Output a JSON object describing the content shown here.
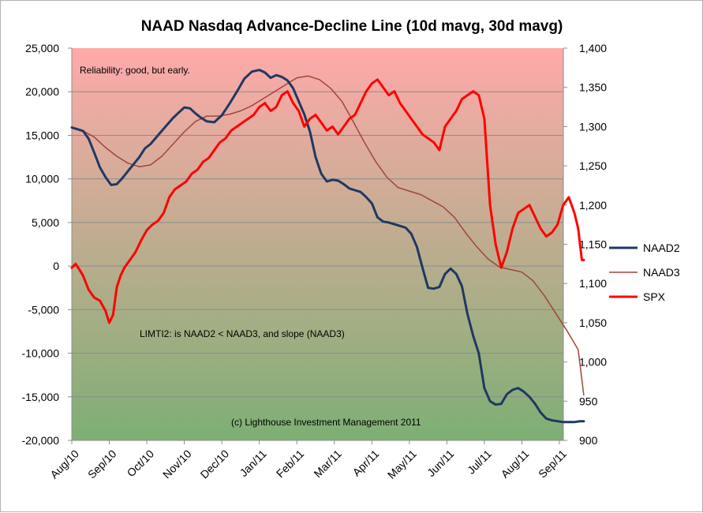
{
  "chart_data": {
    "type": "line",
    "title": "NAAD Nasdaq Advance-Decline Line (10d mavg, 30d mavg)",
    "x_categories": [
      "Aug/10",
      "Sep/10",
      "Oct/10",
      "Nov/10",
      "Dec/10",
      "Jan/11",
      "Feb/11",
      "Mar/11",
      "Apr/11",
      "May/11",
      "Jun/11",
      "Jul/11",
      "Aug/11",
      "Sep/11"
    ],
    "y_left": {
      "ylim": [
        -20000,
        25000
      ],
      "step": 5000,
      "tick_labels": [
        "-20,000",
        "-15,000",
        "-10,000",
        "-5,000",
        "0",
        "5,000",
        "10,000",
        "15,000",
        "20,000",
        "25,000"
      ]
    },
    "y_right": {
      "ylim": [
        900,
        1400
      ],
      "step": 50,
      "tick_labels": [
        "900",
        "950",
        "1,000",
        "1,050",
        "1,100",
        "1,150",
        "1,200",
        "1,250",
        "1,300",
        "1,350",
        "1,400"
      ]
    },
    "grid": true,
    "legend_position": "right",
    "background_gradient": {
      "top": "#ffaaaa",
      "bottom": "#7daf74"
    },
    "annotations": [
      "Reliability: good, but early.",
      "LIMTI2: is NAAD2 < NAAD3, and slope (NAAD3)",
      "(c) Lighthouse Investment Management 2011"
    ],
    "series": [
      {
        "name": "NAAD2",
        "axis": "left",
        "color": "#1f3864",
        "width": 3,
        "x": [
          0,
          0.15,
          0.3,
          0.45,
          0.6,
          0.75,
          0.9,
          1.05,
          1.2,
          1.35,
          1.5,
          1.65,
          1.8,
          1.95,
          2.1,
          2.3,
          2.5,
          2.7,
          2.85,
          3.0,
          3.15,
          3.3,
          3.45,
          3.6,
          3.8,
          4.0,
          4.2,
          4.4,
          4.6,
          4.8,
          5.0,
          5.15,
          5.3,
          5.45,
          5.6,
          5.75,
          5.9,
          6.05,
          6.2,
          6.35,
          6.5,
          6.65,
          6.8,
          6.95,
          7.1,
          7.25,
          7.4,
          7.55,
          7.7,
          7.85,
          8.0,
          8.15,
          8.3,
          8.45,
          8.6,
          8.75,
          8.9,
          9.05,
          9.2,
          9.35,
          9.5,
          9.65,
          9.8,
          9.95,
          10.1,
          10.25,
          10.4,
          10.55,
          10.7,
          10.85,
          11.0,
          11.15,
          11.3,
          11.45,
          11.6,
          11.75,
          11.9,
          12.05,
          12.2,
          12.35,
          12.5,
          12.65,
          12.8,
          12.95,
          13.1,
          13.25,
          13.4,
          13.55,
          13.65
        ],
        "values": [
          15900,
          15700,
          15500,
          14600,
          13000,
          11300,
          10200,
          9300,
          9400,
          10100,
          10900,
          11700,
          12500,
          13500,
          14000,
          15000,
          16000,
          17000,
          17600,
          18200,
          18100,
          17500,
          17000,
          16600,
          16500,
          17300,
          18600,
          20000,
          21500,
          22300,
          22500,
          22200,
          21600,
          21900,
          21700,
          21300,
          20400,
          18900,
          17400,
          15400,
          12500,
          10600,
          9700,
          9900,
          9800,
          9400,
          8900,
          8700,
          8500,
          7900,
          7200,
          5600,
          5100,
          5000,
          4800,
          4600,
          4400,
          3700,
          2200,
          -200,
          -2500,
          -2600,
          -2400,
          -900,
          -300,
          -900,
          -2300,
          -5500,
          -8000,
          -10000,
          -14000,
          -15500,
          -15900,
          -15800,
          -14700,
          -14200,
          -14000,
          -14400,
          -15000,
          -15800,
          -16800,
          -17500,
          -17700,
          -17800,
          -17900,
          -17900,
          -17900,
          -17800,
          -17800
        ]
      },
      {
        "name": "NAAD3",
        "axis": "left",
        "color": "#a0453c",
        "width": 1.5,
        "x": [
          0,
          0.3,
          0.6,
          0.9,
          1.2,
          1.5,
          1.8,
          2.1,
          2.4,
          2.7,
          3.0,
          3.3,
          3.6,
          3.9,
          4.2,
          4.5,
          4.8,
          5.1,
          5.4,
          5.7,
          6.0,
          6.3,
          6.6,
          6.9,
          7.2,
          7.5,
          7.8,
          8.1,
          8.4,
          8.7,
          9.0,
          9.3,
          9.6,
          9.9,
          10.2,
          10.5,
          10.8,
          11.1,
          11.4,
          11.7,
          12.0,
          12.3,
          12.6,
          12.9,
          13.2,
          13.5,
          13.65
        ],
        "values": [
          15800,
          15500,
          14800,
          13600,
          12600,
          11800,
          11400,
          11600,
          12600,
          14000,
          15400,
          16600,
          17200,
          17200,
          17400,
          17800,
          18400,
          19200,
          20000,
          20800,
          21600,
          21800,
          21400,
          20400,
          18900,
          16600,
          14200,
          12000,
          10200,
          9000,
          8600,
          8200,
          7500,
          6800,
          5600,
          3800,
          2200,
          800,
          -100,
          -400,
          -700,
          -1700,
          -3400,
          -5400,
          -7400,
          -9600,
          -14800
        ]
      },
      {
        "name": "SPX",
        "axis": "right",
        "color": "#ff0000",
        "width": 3,
        "x": [
          0,
          0.1,
          0.2,
          0.3,
          0.45,
          0.6,
          0.75,
          0.9,
          1.0,
          1.1,
          1.2,
          1.3,
          1.4,
          1.55,
          1.7,
          1.85,
          2.0,
          2.15,
          2.3,
          2.45,
          2.6,
          2.75,
          2.9,
          3.05,
          3.2,
          3.35,
          3.5,
          3.65,
          3.8,
          3.95,
          4.1,
          4.25,
          4.4,
          4.55,
          4.7,
          4.85,
          5.0,
          5.15,
          5.3,
          5.45,
          5.6,
          5.75,
          5.9,
          6.05,
          6.2,
          6.35,
          6.5,
          6.65,
          6.8,
          6.95,
          7.1,
          7.25,
          7.4,
          7.55,
          7.7,
          7.85,
          8.0,
          8.15,
          8.3,
          8.45,
          8.6,
          8.75,
          8.9,
          9.05,
          9.2,
          9.35,
          9.5,
          9.65,
          9.8,
          9.95,
          10.1,
          10.25,
          10.4,
          10.55,
          10.7,
          10.85,
          11.0,
          11.15,
          11.3,
          11.45,
          11.6,
          11.75,
          11.9,
          12.05,
          12.2,
          12.35,
          12.5,
          12.65,
          12.8,
          12.95,
          13.1,
          13.25,
          13.4,
          13.5,
          13.55,
          13.6,
          13.65
        ],
        "values": [
          1120,
          1125,
          1118,
          1110,
          1092,
          1082,
          1078,
          1065,
          1050,
          1060,
          1095,
          1110,
          1120,
          1130,
          1140,
          1155,
          1168,
          1175,
          1180,
          1190,
          1210,
          1220,
          1225,
          1230,
          1240,
          1245,
          1255,
          1260,
          1270,
          1280,
          1285,
          1295,
          1300,
          1305,
          1310,
          1315,
          1325,
          1330,
          1320,
          1325,
          1340,
          1345,
          1330,
          1320,
          1300,
          1310,
          1315,
          1305,
          1295,
          1300,
          1290,
          1300,
          1310,
          1315,
          1330,
          1345,
          1355,
          1360,
          1350,
          1340,
          1345,
          1330,
          1320,
          1310,
          1300,
          1290,
          1285,
          1280,
          1270,
          1300,
          1310,
          1320,
          1335,
          1340,
          1345,
          1340,
          1310,
          1200,
          1150,
          1120,
          1140,
          1170,
          1190,
          1195,
          1200,
          1185,
          1170,
          1160,
          1165,
          1175,
          1200,
          1210,
          1190,
          1170,
          1150,
          1130,
          1130
        ]
      }
    ]
  }
}
